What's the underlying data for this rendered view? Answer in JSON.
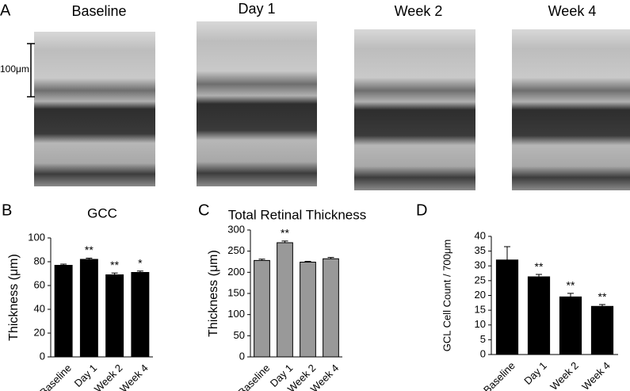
{
  "panel_labels": [
    "A",
    "B",
    "C",
    "D"
  ],
  "images": [
    {
      "title": "Baseline"
    },
    {
      "title": "Day 1"
    },
    {
      "title": "Week 2"
    },
    {
      "title": "Week 4"
    }
  ],
  "scale_bar": "100μm",
  "chart_data": [
    {
      "type": "bar",
      "title": "GCC",
      "y_label": "Thickness (μm)",
      "categories": [
        "Baseline",
        "Day 1",
        "Week 2",
        "Week 4"
      ],
      "values": [
        77,
        82,
        69,
        71
      ],
      "errors": [
        1,
        1,
        1.5,
        1.2
      ],
      "significance": [
        null,
        "**",
        "**",
        "*"
      ],
      "color": "#000000",
      "ylim": [
        0,
        100
      ],
      "yticks": [
        0,
        20,
        40,
        60,
        80,
        100
      ]
    },
    {
      "type": "bar",
      "title": "Total Retinal Thickness",
      "y_label": "Thickness (μm)",
      "categories": [
        "Baseline",
        "Day 1",
        "Week 2",
        "Week 4"
      ],
      "values": [
        228,
        270,
        224,
        232
      ],
      "errors": [
        3,
        4,
        2,
        3
      ],
      "significance": [
        null,
        "**",
        null,
        null
      ],
      "color": "#999999",
      "ylim": [
        0,
        300
      ],
      "yticks": [
        0,
        50,
        100,
        150,
        200,
        250,
        300
      ]
    },
    {
      "type": "bar",
      "y_label": "GCL Cell Count / 700μm",
      "categories": [
        "Baseline",
        "Day 1",
        "Week 2",
        "Week 4"
      ],
      "values": [
        32,
        26.3,
        19.5,
        16.3
      ],
      "errors": [
        4.5,
        0.8,
        1.2,
        0.6
      ],
      "significance": [
        null,
        "**",
        "**",
        "**"
      ],
      "color": "#000000",
      "ylim": [
        0,
        40
      ],
      "yticks": [
        0,
        5,
        10,
        15,
        20,
        25,
        30,
        35,
        40
      ]
    }
  ]
}
